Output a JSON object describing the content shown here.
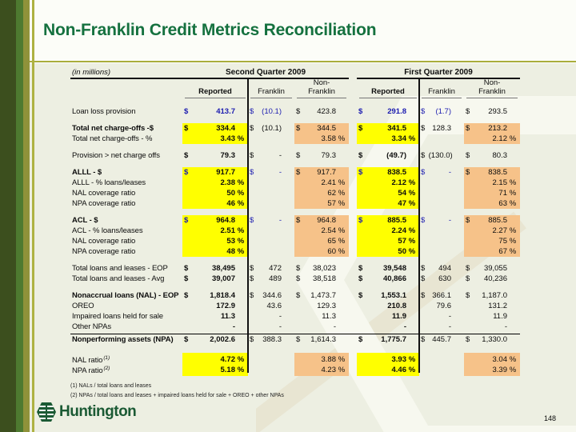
{
  "slide": {
    "title": "Non-Franklin Credit Metrics Reconciliation",
    "page_number": "148",
    "logo_text": "Huntington",
    "footnotes": [
      "(1) NALs / total loans and leases",
      "(2) NPAs / total loans and leases + impaired loans held for sale + OREO + other NPAs"
    ]
  },
  "colors": {
    "title_green": "#15713f",
    "logo_green": "#1b5a34",
    "value_blue": "#1c1cb0",
    "highlight_yellow": "#ffff00",
    "highlight_orange": "#f6c289",
    "stripe_dark": "#3c4f1e",
    "stripe_mid": "#4e7a30",
    "stripe_olive": "#8f923a",
    "content_bg": "#edefe2"
  },
  "table": {
    "units_label": "(in millions)",
    "quarters": [
      "Second Quarter 2009",
      "First Quarter 2009"
    ],
    "columns": {
      "reported": "Reported",
      "franklin": "Franklin",
      "nonfranklin_1": "Non-",
      "nonfranklin_2": "Franklin"
    },
    "rows": [
      {
        "label": "Loan loss provision",
        "mt": 10,
        "cells": [
          {
            "d": "$",
            "v": "413.7",
            "c": "blue"
          },
          {
            "d": "$",
            "v": "(10.1)",
            "c": "blue"
          },
          {
            "d": "$",
            "v": "423.8"
          },
          {
            "d": "$",
            "v": "291.8",
            "c": "blue"
          },
          {
            "d": "$",
            "v": "(1.7)",
            "c": "blue"
          },
          {
            "d": "$",
            "v": "293.5"
          }
        ]
      },
      {
        "label": "Total net charge-offs -$",
        "b": 1,
        "hl": 1,
        "mt": 8,
        "cells": [
          {
            "d": "$",
            "v": "334.4"
          },
          {
            "d": "$",
            "v": "(10.1)"
          },
          {
            "d": "$",
            "v": "344.5"
          },
          {
            "d": "$",
            "v": "341.5"
          },
          {
            "d": "$",
            "v": "128.3"
          },
          {
            "d": "$",
            "v": "213.2"
          }
        ]
      },
      {
        "label": "Total net charge-offs - %",
        "hl": 1,
        "cells": [
          {
            "v": "3.43",
            "p": "%"
          },
          null,
          {
            "v": "3.58",
            "p": "%"
          },
          {
            "v": "3.34",
            "p": "%"
          },
          null,
          {
            "v": "2.12",
            "p": "%"
          }
        ]
      },
      {
        "label": "Provision > net charge offs",
        "mt": 8,
        "cells": [
          {
            "d": "$",
            "v": "79.3"
          },
          {
            "d": "$",
            "v": "-"
          },
          {
            "d": "$",
            "v": "79.3"
          },
          {
            "d": "$",
            "v": "(49.7)"
          },
          {
            "d": "$",
            "v": "(130.0)"
          },
          {
            "d": "$",
            "v": "80.3"
          }
        ]
      },
      {
        "label": "ALLL - $",
        "b": 1,
        "hl": 1,
        "mt": 8,
        "cells": [
          {
            "d": "$",
            "v": "917.7",
            "ds": 1
          },
          {
            "d": "$",
            "v": "-",
            "c": "blue"
          },
          {
            "d": "$",
            "v": "917.7"
          },
          {
            "d": "$",
            "v": "838.5",
            "ds": 1
          },
          {
            "d": "$",
            "v": "-",
            "c": "blue"
          },
          {
            "d": "$",
            "v": "838.5"
          }
        ]
      },
      {
        "label": "ALLL - % loans/leases",
        "hl": 1,
        "cells": [
          {
            "v": "2.38",
            "p": "%"
          },
          null,
          {
            "v": "2.41",
            "p": "%"
          },
          {
            "v": "2.12",
            "p": "%"
          },
          null,
          {
            "v": "2.15",
            "p": "%"
          }
        ]
      },
      {
        "label": "NAL coverage ratio",
        "hl": 1,
        "cells": [
          {
            "v": "50",
            "p": "%"
          },
          null,
          {
            "v": "62",
            "p": "%"
          },
          {
            "v": "54",
            "p": "%"
          },
          null,
          {
            "v": "71",
            "p": "%"
          }
        ]
      },
      {
        "label": "NPA coverage ratio",
        "hl": 1,
        "cells": [
          {
            "v": "46",
            "p": "%"
          },
          null,
          {
            "v": "57",
            "p": "%"
          },
          {
            "v": "47",
            "p": "%"
          },
          null,
          {
            "v": "63",
            "p": "%"
          }
        ]
      },
      {
        "label": "ACL - $",
        "b": 1,
        "hl": 1,
        "mt": 8,
        "cells": [
          {
            "d": "$",
            "v": "964.8",
            "ds": 1
          },
          {
            "d": "$",
            "v": "-",
            "c": "blue"
          },
          {
            "d": "$",
            "v": "964.8"
          },
          {
            "d": "$",
            "v": "885.5",
            "ds": 1
          },
          {
            "d": "$",
            "v": "-",
            "c": "blue"
          },
          {
            "d": "$",
            "v": "885.5"
          }
        ]
      },
      {
        "label": "ACL - % loans/leases",
        "hl": 1,
        "cells": [
          {
            "v": "2.51",
            "p": "%"
          },
          null,
          {
            "v": "2.54",
            "p": "%"
          },
          {
            "v": "2.24",
            "p": "%"
          },
          null,
          {
            "v": "2.27",
            "p": "%"
          }
        ]
      },
      {
        "label": "NAL coverage ratio",
        "hl": 1,
        "cells": [
          {
            "v": "53",
            "p": "%"
          },
          null,
          {
            "v": "65",
            "p": "%"
          },
          {
            "v": "57",
            "p": "%"
          },
          null,
          {
            "v": "75",
            "p": "%"
          }
        ]
      },
      {
        "label": "NPA coverage ratio",
        "hl": 1,
        "cells": [
          {
            "v": "48",
            "p": "%"
          },
          null,
          {
            "v": "60",
            "p": "%"
          },
          {
            "v": "50",
            "p": "%"
          },
          null,
          {
            "v": "67",
            "p": "%"
          }
        ]
      },
      {
        "label": "Total loans and leases - EOP",
        "mt": 8,
        "cells": [
          {
            "d": "$",
            "v": "38,495"
          },
          {
            "d": "$",
            "v": "472"
          },
          {
            "d": "$",
            "v": "38,023"
          },
          {
            "d": "$",
            "v": "39,548"
          },
          {
            "d": "$",
            "v": "494"
          },
          {
            "d": "$",
            "v": "39,055"
          }
        ]
      },
      {
        "label": "Total loans and leases - Avg",
        "cells": [
          {
            "d": "$",
            "v": "39,007"
          },
          {
            "d": "$",
            "v": "489"
          },
          {
            "d": "$",
            "v": "38,518"
          },
          {
            "d": "$",
            "v": "40,866"
          },
          {
            "d": "$",
            "v": "630"
          },
          {
            "d": "$",
            "v": "40,236"
          }
        ]
      },
      {
        "label": "Nonaccrual loans (NAL) - EOP",
        "b": 1,
        "mt": 8,
        "cells": [
          {
            "d": "$",
            "v": "1,818.4"
          },
          {
            "d": "$",
            "v": "344.6"
          },
          {
            "d": "$",
            "v": "1,473.7"
          },
          {
            "d": "$",
            "v": "1,553.1"
          },
          {
            "d": "$",
            "v": "366.1"
          },
          {
            "d": "$",
            "v": "1,187.0"
          }
        ]
      },
      {
        "label": "OREO",
        "cells": [
          {
            "v": "172.9"
          },
          {
            "v": "43.6"
          },
          {
            "v": "129.3"
          },
          {
            "v": "210.8"
          },
          {
            "v": "79.6"
          },
          {
            "v": "131.2"
          }
        ]
      },
      {
        "label": "Impaired loans held for sale",
        "cells": [
          {
            "v": "11.3"
          },
          {
            "v": "-"
          },
          {
            "v": "11.3"
          },
          {
            "v": "11.9"
          },
          {
            "v": "-"
          },
          {
            "v": "11.9"
          }
        ]
      },
      {
        "label": "Other NPAs",
        "cells": [
          {
            "v": "-"
          },
          {
            "v": "-"
          },
          {
            "v": "-"
          },
          {
            "v": "-"
          },
          {
            "v": "-"
          },
          {
            "v": "-"
          }
        ]
      },
      {
        "label": "Nonperforming assets (NPA)",
        "b": 1,
        "sum": 1,
        "mt": 2,
        "cells": [
          {
            "d": "$",
            "v": "2,002.6"
          },
          {
            "d": "$",
            "v": "388.3"
          },
          {
            "d": "$",
            "v": "1,614.3"
          },
          {
            "d": "$",
            "v": "1,775.7"
          },
          {
            "d": "$",
            "v": "445.7"
          },
          {
            "d": "$",
            "v": "1,330.0"
          }
        ]
      },
      {
        "label": "NAL ratio",
        "sup": "(1)",
        "hl": 1,
        "mt": 10,
        "cells": [
          {
            "v": "4.72",
            "p": "%"
          },
          null,
          {
            "v": "3.88",
            "p": "%"
          },
          {
            "v": "3.93",
            "p": "%"
          },
          null,
          {
            "v": "3.04",
            "p": "%"
          }
        ]
      },
      {
        "label": "NPA ratio",
        "sup": "(2)",
        "hl": 1,
        "cells": [
          {
            "v": "5.18",
            "p": "%"
          },
          null,
          {
            "v": "4.23",
            "p": "%"
          },
          {
            "v": "4.46",
            "p": "%"
          },
          null,
          {
            "v": "3.39",
            "p": "%"
          }
        ]
      }
    ]
  }
}
